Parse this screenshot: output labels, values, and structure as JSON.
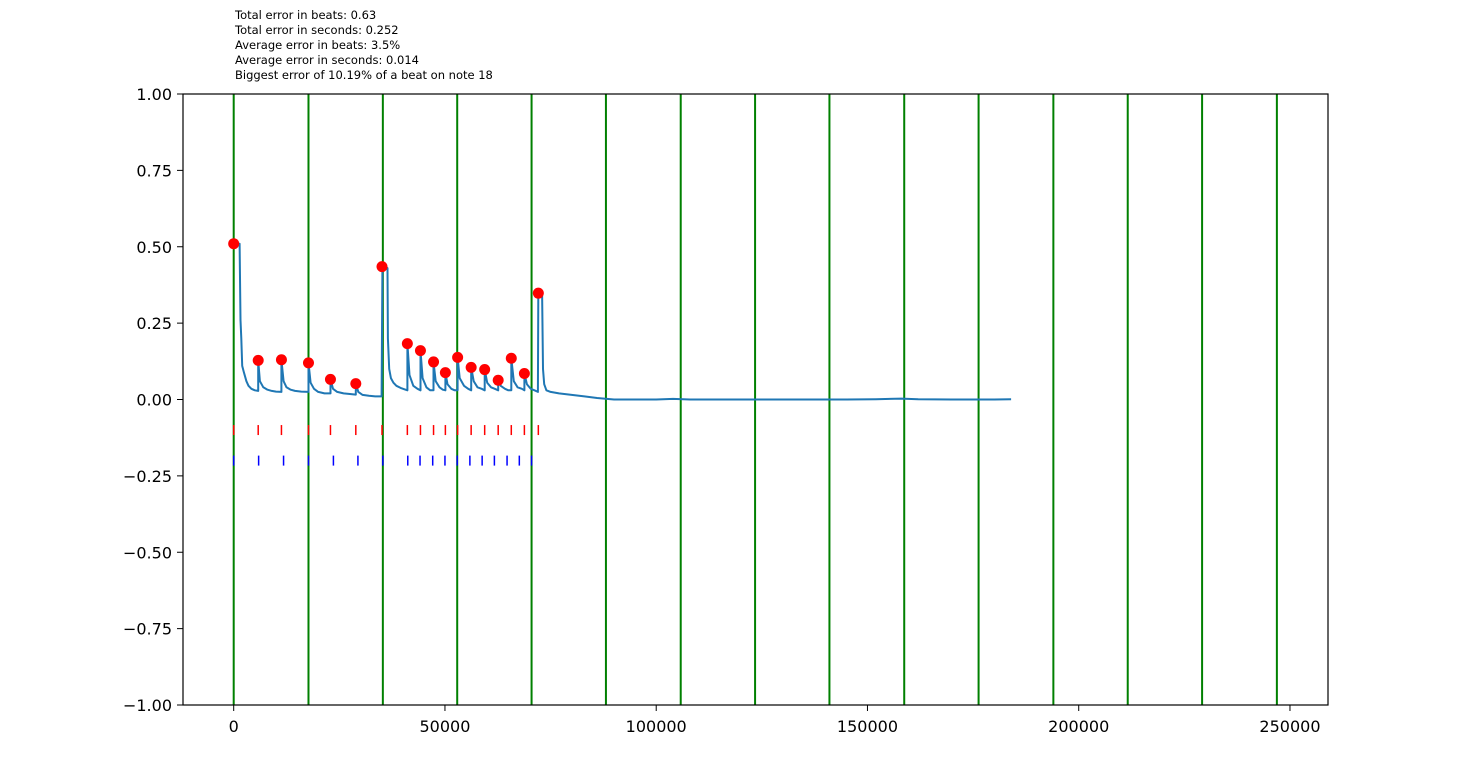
{
  "stats": {
    "total_beats": "Total error in beats: 0.63",
    "total_seconds": "Total error in seconds: 0.252",
    "avg_beats": "Average error in beats: 3.5%",
    "avg_seconds": "Average error in seconds: 0.014",
    "biggest": "Biggest error of 10.19% of a beat on note 18"
  },
  "chart_data": {
    "type": "line",
    "xlim": [
      -12000,
      259000
    ],
    "ylim": [
      -1.0,
      1.0
    ],
    "x_ticks": [
      0,
      50000,
      100000,
      150000,
      200000,
      250000
    ],
    "x_tick_labels": [
      "0",
      "50000",
      "100000",
      "150000",
      "200000",
      "250000"
    ],
    "y_ticks": [
      -1.0,
      -0.75,
      -0.5,
      -0.25,
      0.0,
      0.25,
      0.5,
      0.75,
      1.0
    ],
    "y_tick_labels": [
      "−1.00",
      "−0.75",
      "−0.50",
      "−0.25",
      "0.00",
      "0.25",
      "0.50",
      "0.75",
      "1.00"
    ],
    "grid": false,
    "colors": {
      "line": "#1f77b4",
      "points": "#ff0000",
      "beats": "#008000",
      "red_ticks": "#ff0000",
      "blue_ticks": "#0000ff"
    },
    "beat_lines": [
      0,
      17700,
      35300,
      52900,
      70500,
      88100,
      105800,
      123400,
      141000,
      158700,
      176300,
      194000,
      211600,
      229200,
      246900
    ],
    "error_points": {
      "x": [
        0,
        5800,
        11300,
        17700,
        22900,
        28900,
        35100,
        41100,
        44200,
        47300,
        50100,
        53000,
        56200,
        59400,
        62600,
        65700,
        68800,
        72100
      ],
      "y": [
        0.51,
        0.128,
        0.13,
        0.12,
        0.066,
        0.052,
        0.435,
        0.183,
        0.16,
        0.123,
        0.088,
        0.138,
        0.105,
        0.098,
        0.063,
        0.135,
        0.085,
        0.348
      ]
    },
    "red_ticks": {
      "y": -0.1,
      "x": [
        0,
        5800,
        11300,
        17700,
        22900,
        28900,
        35100,
        41100,
        44200,
        47300,
        50100,
        53000,
        56200,
        59400,
        62600,
        65700,
        68800,
        72100
      ]
    },
    "blue_ticks": {
      "y": -0.2,
      "x": [
        0,
        5900,
        11800,
        17700,
        23600,
        29400,
        35300,
        41200,
        44100,
        47100,
        50000,
        52900,
        55900,
        58800,
        61700,
        64700,
        67600,
        70500
      ]
    },
    "error_curve": {
      "x": [
        0,
        1400,
        1600,
        1800,
        2000,
        2400,
        3000,
        3500,
        4200,
        5000,
        5800,
        5800,
        6200,
        7000,
        8000,
        9000,
        10000,
        11300,
        11300,
        11800,
        12500,
        13500,
        14500,
        16000,
        17700,
        17700,
        18200,
        19000,
        20000,
        21500,
        22900,
        22900,
        23500,
        24500,
        26000,
        27500,
        28900,
        28900,
        29500,
        30500,
        32000,
        33500,
        34800,
        35000,
        35200,
        35300,
        36000,
        36400,
        36500,
        36800,
        37200,
        37800,
        38500,
        39500,
        40500,
        41100,
        41100,
        41600,
        42500,
        43500,
        44200,
        44200,
        44700,
        45600,
        46500,
        47300,
        47300,
        47800,
        48700,
        49500,
        50100,
        50100,
        50600,
        51500,
        52300,
        53000,
        53000,
        53500,
        54500,
        55500,
        56200,
        56200,
        56800,
        57700,
        58700,
        59400,
        59400,
        60000,
        60900,
        61800,
        62600,
        62600,
        63200,
        64200,
        65000,
        65700,
        65700,
        66300,
        67200,
        68200,
        68800,
        68800,
        69400,
        70300,
        71200,
        72000,
        72100,
        73000,
        73200,
        73500,
        74000,
        75000,
        77000,
        80000,
        83000,
        86000,
        90000,
        95000,
        100000,
        104000,
        108000,
        115000,
        125000,
        135000,
        145000,
        152000,
        158000,
        162000,
        170000,
        175000,
        180000,
        184000
      ],
      "y": [
        0.51,
        0.51,
        0.26,
        0.2,
        0.11,
        0.09,
        0.06,
        0.045,
        0.035,
        0.03,
        0.028,
        0.128,
        0.06,
        0.04,
        0.032,
        0.028,
        0.026,
        0.025,
        0.13,
        0.06,
        0.04,
        0.032,
        0.028,
        0.026,
        0.025,
        0.12,
        0.055,
        0.035,
        0.025,
        0.02,
        0.02,
        0.066,
        0.035,
        0.025,
        0.02,
        0.018,
        0.016,
        0.052,
        0.025,
        0.015,
        0.012,
        0.01,
        0.01,
        0.01,
        0.42,
        0.435,
        0.435,
        0.43,
        0.2,
        0.1,
        0.07,
        0.055,
        0.045,
        0.038,
        0.033,
        0.03,
        0.183,
        0.08,
        0.045,
        0.035,
        0.03,
        0.16,
        0.07,
        0.04,
        0.03,
        0.03,
        0.123,
        0.06,
        0.04,
        0.032,
        0.03,
        0.088,
        0.05,
        0.035,
        0.03,
        0.03,
        0.138,
        0.07,
        0.045,
        0.035,
        0.03,
        0.105,
        0.06,
        0.04,
        0.035,
        0.03,
        0.098,
        0.055,
        0.04,
        0.035,
        0.03,
        0.063,
        0.045,
        0.035,
        0.03,
        0.03,
        0.135,
        0.06,
        0.04,
        0.035,
        0.03,
        0.085,
        0.05,
        0.035,
        0.03,
        0.025,
        0.348,
        0.348,
        0.1,
        0.05,
        0.03,
        0.025,
        0.02,
        0.015,
        0.01,
        0.005,
        0.0,
        0.0,
        0.0,
        0.002,
        0.0,
        0.0,
        0.0,
        0.0,
        0.0,
        0.001,
        0.003,
        0.001,
        0.0,
        0.0,
        0.0,
        0.001
      ]
    }
  }
}
